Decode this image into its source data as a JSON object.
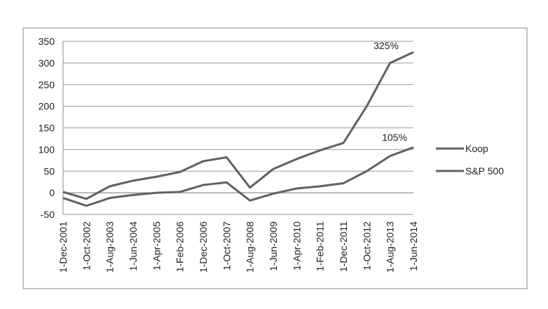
{
  "chart_data": {
    "type": "line",
    "categories": [
      "1-Dec-2001",
      "1-Oct-2002",
      "1-Aug-2003",
      "1-Jun-2004",
      "1-Apr-2005",
      "1-Feb-2006",
      "1-Dec-2006",
      "1-Oct-2007",
      "1-Aug-2008",
      "1-Jun-2009",
      "1-Apr-2010",
      "1-Feb-2011",
      "1-Dec-2011",
      "1-Oct-2012",
      "1-Aug-2013",
      "1-Jun-2014"
    ],
    "series": [
      {
        "name": "Koop",
        "color": "#606060",
        "values": [
          2,
          -14,
          15,
          28,
          37,
          48,
          73,
          82,
          12,
          55,
          78,
          98,
          115,
          200,
          300,
          325
        ]
      },
      {
        "name": "S&P 500",
        "color": "#606060",
        "values": [
          -12,
          -30,
          -12,
          -5,
          0,
          2,
          18,
          24,
          -18,
          -2,
          10,
          15,
          22,
          50,
          85,
          105
        ]
      }
    ],
    "annotations": [
      "325%",
      "105%"
    ],
    "ylim": [
      -50,
      350
    ],
    "yticks": [
      -50,
      0,
      50,
      100,
      150,
      200,
      250,
      300,
      350
    ],
    "grid": true,
    "legend": "right"
  }
}
